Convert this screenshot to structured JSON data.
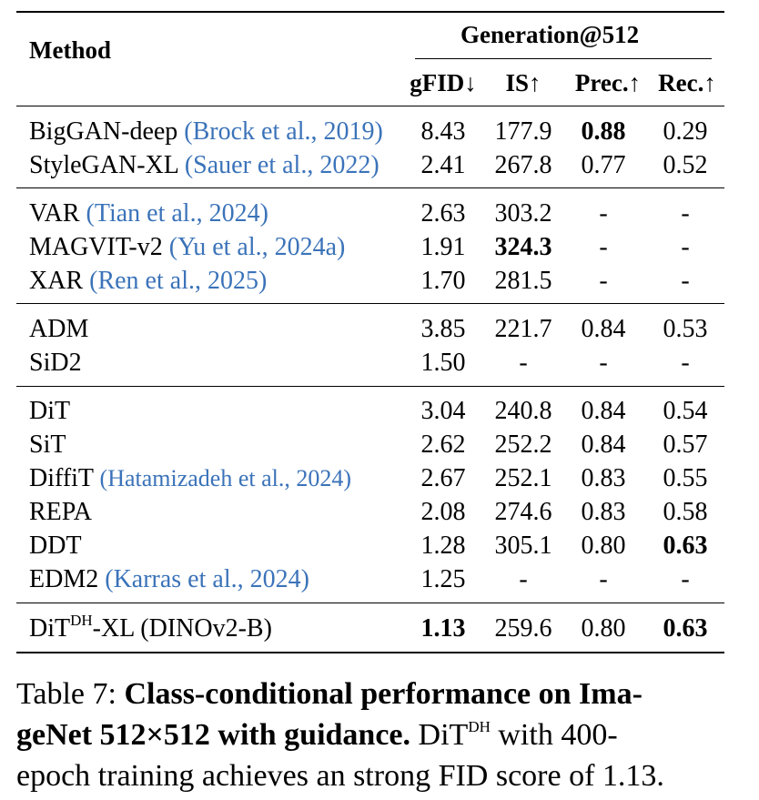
{
  "table": {
    "header": {
      "method": "Method",
      "group": "Generation@512",
      "cols": [
        "gFID↓",
        "IS↑",
        "Prec.↑",
        "Rec.↑"
      ]
    },
    "rows": [
      {
        "name": "BigGAN-deep",
        "cite_author": "Brock et al.",
        "cite_year": "2019",
        "gfid": "8.43",
        "is": "177.9",
        "prec": "0.88",
        "rec": "0.29"
      },
      {
        "name": "StyleGAN-XL",
        "cite_author": "Sauer et al.",
        "cite_year": "2022",
        "gfid": "2.41",
        "is": "267.8",
        "prec": "0.77",
        "rec": "0.52"
      },
      {
        "name": "VAR",
        "cite_author": "Tian et al.",
        "cite_year": "2024",
        "gfid": "2.63",
        "is": "303.2",
        "prec": "-",
        "rec": "-"
      },
      {
        "name": "MAGVIT-v2",
        "cite_author": "Yu et al.",
        "cite_year": "2024a",
        "gfid": "1.91",
        "is": "324.3",
        "prec": "-",
        "rec": "-"
      },
      {
        "name": "XAR",
        "cite_author": "Ren et al.",
        "cite_year": "2025",
        "gfid": "1.70",
        "is": "281.5",
        "prec": "-",
        "rec": "-"
      },
      {
        "name": "ADM",
        "gfid": "3.85",
        "is": "221.7",
        "prec": "0.84",
        "rec": "0.53"
      },
      {
        "name": "SiD2",
        "gfid": "1.50",
        "is": "-",
        "prec": "-",
        "rec": "-"
      },
      {
        "name": "DiT",
        "gfid": "3.04",
        "is": "240.8",
        "prec": "0.84",
        "rec": "0.54"
      },
      {
        "name": "SiT",
        "gfid": "2.62",
        "is": "252.2",
        "prec": "0.84",
        "rec": "0.57"
      },
      {
        "name": "DiffiT",
        "cite_author": "Hatamizadeh et al.",
        "cite_year": "2024",
        "gfid": "2.67",
        "is": "252.1",
        "prec": "0.83",
        "rec": "0.55"
      },
      {
        "name": "REPA",
        "gfid": "2.08",
        "is": "274.6",
        "prec": "0.83",
        "rec": "0.58"
      },
      {
        "name": "DDT",
        "gfid": "1.28",
        "is": "305.1",
        "prec": "0.80",
        "rec": "0.63"
      },
      {
        "name": "EDM2",
        "cite_author": "Karras et al.",
        "cite_year": "2024",
        "gfid": "1.25",
        "is": "-",
        "prec": "-",
        "rec": "-"
      },
      {
        "name_main": "DiT",
        "name_sup": "DH",
        "name_rest": "-XL (DINOv2-B)",
        "gfid": "1.13",
        "is": "259.6",
        "prec": "0.80",
        "rec": "0.63"
      }
    ]
  },
  "caption": {
    "label": "Table 7:",
    "bold_line1": "Class-conditional performance on Ima-",
    "bold_line2": "geNet 512×512 with guidance.",
    "rest_line2_a": "DiT",
    "rest_line2_sup": "DH",
    "rest_line2_b": "with 400-",
    "line3": "epoch training achieves an strong FID score of 1.13."
  }
}
